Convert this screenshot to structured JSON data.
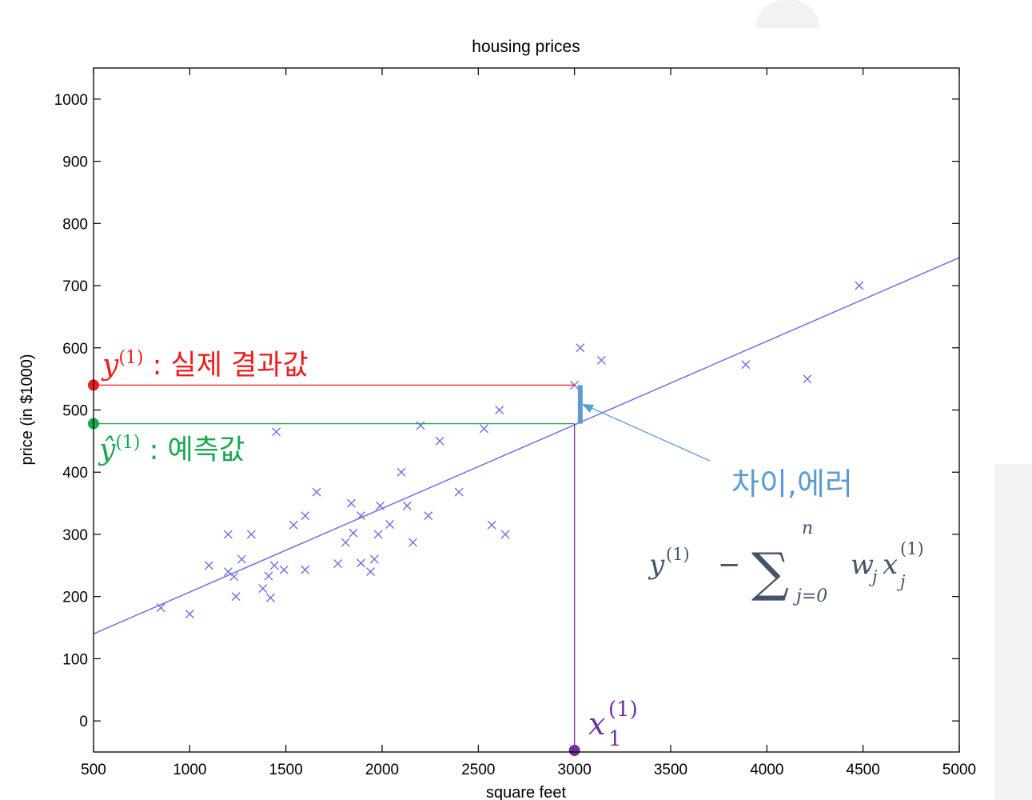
{
  "chart_data": {
    "type": "scatter",
    "title": "housing prices",
    "xlabel": "square feet",
    "ylabel": "price (in $1000)",
    "xlim": [
      500,
      5000
    ],
    "ylim": [
      -50,
      1050
    ],
    "xticks": [
      500,
      1000,
      1500,
      2000,
      2500,
      3000,
      3500,
      4000,
      4500,
      5000
    ],
    "yticks": [
      0,
      100,
      200,
      300,
      400,
      500,
      600,
      700,
      800,
      900,
      1000
    ],
    "grid": false,
    "series": [
      {
        "marker": "x",
        "color": "#6f6fe6",
        "points": [
          [
            850,
            182
          ],
          [
            1000,
            172
          ],
          [
            1100,
            250
          ],
          [
            1200,
            300
          ],
          [
            1200,
            240
          ],
          [
            1230,
            232
          ],
          [
            1240,
            200
          ],
          [
            1270,
            260
          ],
          [
            1320,
            300
          ],
          [
            1380,
            213
          ],
          [
            1410,
            233
          ],
          [
            1420,
            198
          ],
          [
            1440,
            250
          ],
          [
            1450,
            465
          ],
          [
            1490,
            243
          ],
          [
            1540,
            315
          ],
          [
            1600,
            330
          ],
          [
            1600,
            243
          ],
          [
            1660,
            368
          ],
          [
            1770,
            253
          ],
          [
            1810,
            287
          ],
          [
            1840,
            350
          ],
          [
            1850,
            302
          ],
          [
            1890,
            330
          ],
          [
            1890,
            254
          ],
          [
            1940,
            240
          ],
          [
            1960,
            260
          ],
          [
            1980,
            300
          ],
          [
            1990,
            346
          ],
          [
            2040,
            316
          ],
          [
            2100,
            400
          ],
          [
            2130,
            346
          ],
          [
            2160,
            287
          ],
          [
            2200,
            475
          ],
          [
            2240,
            330
          ],
          [
            2300,
            450
          ],
          [
            2400,
            368
          ],
          [
            2530,
            470
          ],
          [
            2570,
            315
          ],
          [
            2610,
            500
          ],
          [
            2640,
            300
          ],
          [
            3000,
            540
          ],
          [
            3030,
            600
          ],
          [
            3140,
            580
          ],
          [
            3890,
            573
          ],
          [
            4210,
            550
          ],
          [
            4480,
            700
          ]
        ]
      }
    ],
    "fit_line": {
      "color": "#6f6fe6",
      "x": [
        500,
        5000
      ],
      "y": [
        140,
        745
      ]
    },
    "annotations": {
      "actual": {
        "y": 540,
        "color": "#ee1c1c",
        "label_symbol": "y",
        "label_sup": "(1)",
        "label_text": " : 실제 결과값"
      },
      "predicted": {
        "y": 478,
        "color": "#1aa84f",
        "label_symbol": "ŷ",
        "label_sup": "(1)",
        "label_text": " : 예측값"
      },
      "feature": {
        "x": 3000,
        "color": "#7030a0",
        "label_symbol": "x",
        "label_sub": "1",
        "label_sup": "(1)"
      },
      "error": {
        "x": 3030,
        "y_from": 478,
        "y_to": 540,
        "color": "#5b9bd5",
        "label": "차이,에러",
        "formula_color": "#44546a",
        "formula": {
          "y": "y",
          "sup": "(1)",
          "minus": "−",
          "sum": "∑",
          "sum_top": "n",
          "sum_bottom": "j=0",
          "w": "w",
          "w_sub": "j",
          "x": "x",
          "x_sub": "j",
          "x_sup": "(1)"
        }
      }
    }
  }
}
